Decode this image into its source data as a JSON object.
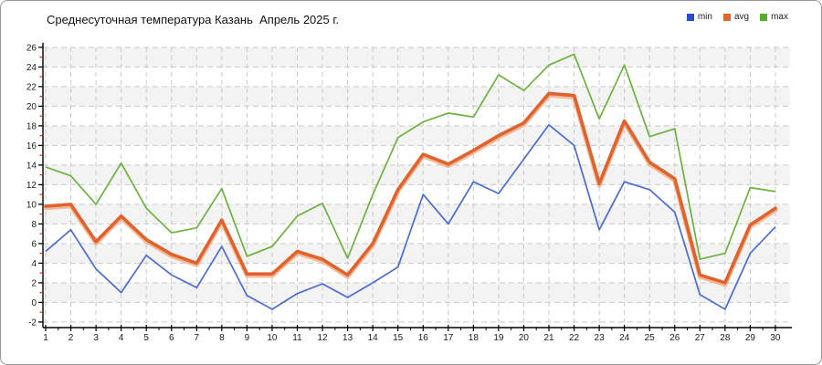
{
  "title": "Среднесуточная температура Казань  Апрель 2025 г.",
  "legend": [
    {
      "label": "min",
      "color": "#2a4ccc"
    },
    {
      "label": "avg",
      "color": "#e2662e"
    },
    {
      "label": "max",
      "color": "#55ae27"
    }
  ],
  "chart_data": {
    "type": "line",
    "title": "Среднесуточная температура Казань  Апрель 2025 г.",
    "xlabel": "",
    "ylabel": "",
    "x": [
      1,
      2,
      3,
      4,
      5,
      6,
      7,
      8,
      9,
      10,
      11,
      12,
      13,
      14,
      15,
      16,
      17,
      18,
      19,
      20,
      21,
      22,
      23,
      24,
      25,
      26,
      27,
      28,
      29,
      30
    ],
    "series": [
      {
        "name": "min",
        "color": "#4a6bd6",
        "values": [
          5.2,
          7.4,
          3.4,
          1.0,
          4.8,
          2.8,
          1.5,
          5.7,
          0.7,
          -0.7,
          0.9,
          1.9,
          0.5,
          2.0,
          3.6,
          11.0,
          8.0,
          12.3,
          11.1,
          14.6,
          18.1,
          16.0,
          7.4,
          12.3,
          11.5,
          9.2,
          0.8,
          -0.7,
          5.0,
          7.7
        ]
      },
      {
        "name": "avg",
        "color": "#e0622d",
        "values": [
          9.8,
          10.0,
          6.2,
          8.8,
          6.4,
          4.9,
          4.0,
          8.4,
          2.9,
          2.9,
          5.2,
          4.4,
          2.8,
          6.0,
          11.5,
          15.1,
          14.1,
          15.5,
          17.0,
          18.3,
          21.3,
          21.1,
          12.1,
          18.5,
          14.3,
          12.6,
          2.8,
          2.0,
          7.9,
          9.6
        ]
      },
      {
        "name": "max",
        "color": "#6ab33c",
        "values": [
          13.8,
          12.9,
          10.0,
          14.2,
          9.6,
          7.1,
          7.6,
          11.6,
          4.7,
          5.7,
          8.8,
          10.1,
          4.5,
          11.0,
          16.8,
          18.4,
          19.3,
          18.9,
          23.2,
          21.6,
          24.2,
          25.3,
          18.7,
          24.2,
          16.9,
          17.7,
          4.4,
          5.0,
          11.7,
          11.3
        ]
      }
    ],
    "ylim": [
      -2,
      26
    ],
    "ytick_step": 2,
    "grid": true,
    "legend_position": "top-right",
    "band_colors": [
      "#f3f3f3",
      "#ffffff"
    ],
    "grid_color": "#c9c9c9",
    "axis_color": "#000000",
    "minor_tick_color": "#cc2b2b",
    "tick_label_color": "#1a1a1a",
    "avg_shadow_color": "#f2a97e"
  }
}
